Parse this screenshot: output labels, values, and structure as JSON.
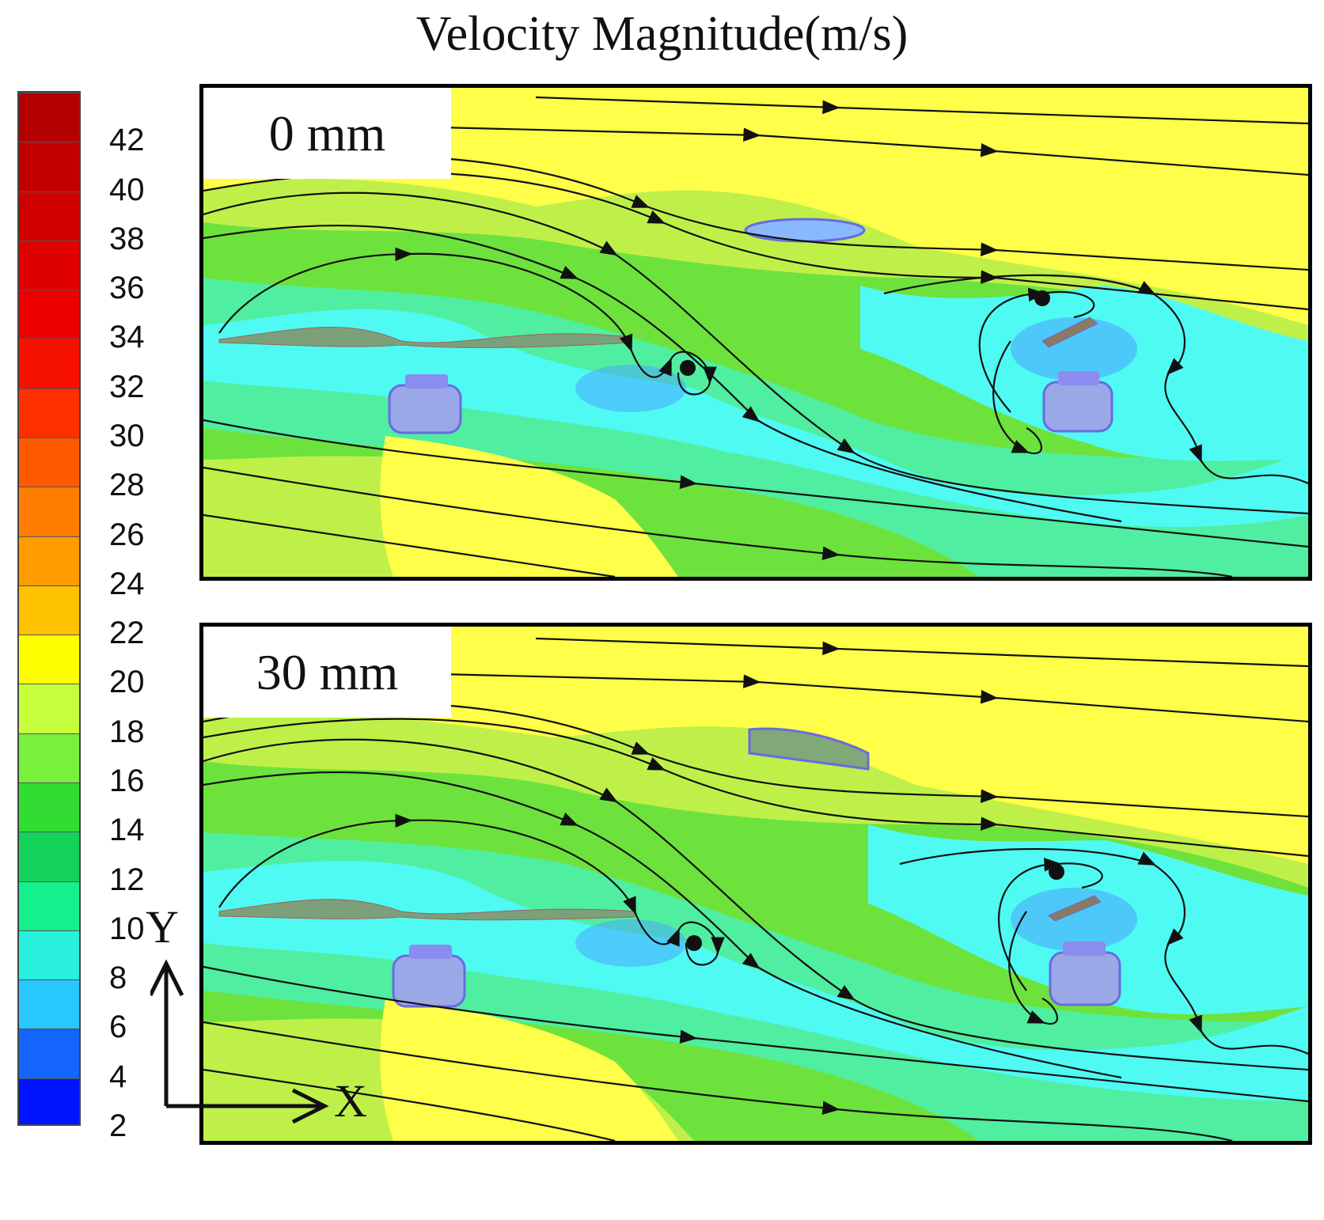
{
  "title": "Velocity Magnitude(m/s)",
  "colorbar": {
    "ticks": [
      "42",
      "40",
      "38",
      "36",
      "34",
      "32",
      "30",
      "28",
      "26",
      "24",
      "22",
      "20",
      "18",
      "16",
      "14",
      "12",
      "10",
      "8",
      "6",
      "4",
      "2"
    ],
    "band_colors": [
      "#b30000",
      "#c20000",
      "#d10000",
      "#df0000",
      "#ec0000",
      "#f51000",
      "#ff3000",
      "#ff5a00",
      "#ff7d00",
      "#ff9d00",
      "#ffc200",
      "#ffff00",
      "#c8ff3c",
      "#78f03c",
      "#32dc32",
      "#14d25a",
      "#14f08c",
      "#28f0dc",
      "#28c8ff",
      "#1464ff",
      "#0014ff"
    ]
  },
  "panels": [
    {
      "label": "0 mm"
    },
    {
      "label": "30 mm"
    }
  ],
  "axes": {
    "y_label": "Y",
    "x_label": "X"
  },
  "colors": {
    "yellow": "#ffff4a",
    "lime": "#b8f04a",
    "green": "#66e23c",
    "mint": "#4ef0a0",
    "cyan": "#4ffaf2",
    "blue": "#4aa0ff",
    "body": "#8a8cf0"
  }
}
